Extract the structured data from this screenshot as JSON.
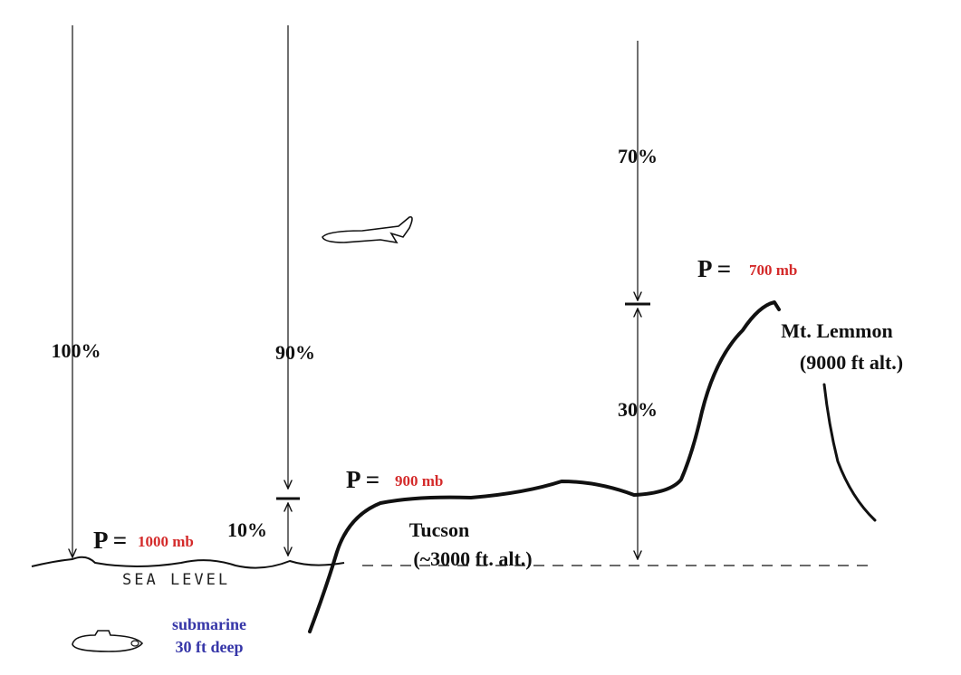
{
  "arrows": [
    {
      "label": "100%"
    },
    {
      "label": "90%"
    },
    {
      "label": "10%"
    },
    {
      "label": "70%"
    },
    {
      "label": "30%"
    }
  ],
  "pressures": [
    {
      "prefix": "P =",
      "value": "1000 mb"
    },
    {
      "prefix": "P =",
      "value": "900 mb"
    },
    {
      "prefix": "P =",
      "value": "700 mb"
    }
  ],
  "places": [
    {
      "name": "Tucson",
      "altitude": "(~3000 ft. alt.)"
    },
    {
      "name": "Mt. Lemmon",
      "altitude": "(9000 ft alt.)"
    }
  ],
  "sea_level": "SEA LEVEL",
  "submarine": {
    "name": "submarine",
    "depth": "30 ft deep"
  }
}
